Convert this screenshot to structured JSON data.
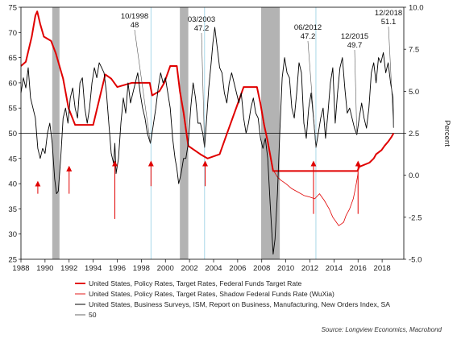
{
  "chart_data": {
    "type": "line",
    "source": "Source: Longview Economics, Macrobond",
    "x_axis": {
      "min": 1988,
      "max": 2019.8,
      "ticks": [
        1988,
        1990,
        1992,
        1994,
        1996,
        1998,
        2000,
        2002,
        2004,
        2006,
        2008,
        2010,
        2012,
        2014,
        2016,
        2018
      ]
    },
    "y_left": {
      "min": 25,
      "max": 75,
      "ticks": [
        25,
        30,
        35,
        40,
        45,
        50,
        55,
        60,
        65,
        70,
        75
      ]
    },
    "y_right": {
      "min": -5.0,
      "max": 10.0,
      "ticks": [
        -5.0,
        -2.5,
        0.0,
        2.5,
        5.0,
        7.5,
        10.0
      ],
      "tick_labels": [
        "-5.0",
        "-2.5",
        "0.0",
        "2.5",
        "5.0",
        "7.5",
        "10.0"
      ],
      "label": "Percent"
    },
    "grid": false,
    "legend_position": "bottom",
    "recessions": [
      [
        1990.6,
        1991.2
      ],
      [
        2001.2,
        2001.9
      ],
      [
        2007.95,
        2009.5
      ]
    ],
    "vertical_markers": [
      1998.8,
      2003.25,
      2012.5
    ],
    "series": [
      {
        "name": "United States, Policy Rates, Target Rates, Federal Funds Target Rate",
        "axis": "right",
        "color": "#e00000",
        "width": 2.0,
        "points": [
          [
            1988.0,
            6.5
          ],
          [
            1988.4,
            6.75
          ],
          [
            1988.9,
            8.25
          ],
          [
            1989.2,
            9.5
          ],
          [
            1989.35,
            9.75
          ],
          [
            1989.6,
            9.0
          ],
          [
            1989.9,
            8.25
          ],
          [
            1990.5,
            8.0
          ],
          [
            1990.9,
            7.25
          ],
          [
            1991.5,
            5.75
          ],
          [
            1991.95,
            4.0
          ],
          [
            1992.5,
            3.0
          ],
          [
            1993.0,
            3.0
          ],
          [
            1994.0,
            3.0
          ],
          [
            1994.5,
            4.5
          ],
          [
            1995.0,
            6.0
          ],
          [
            1995.5,
            5.75
          ],
          [
            1996.0,
            5.25
          ],
          [
            1997.2,
            5.5
          ],
          [
            1998.7,
            5.5
          ],
          [
            1998.9,
            4.75
          ],
          [
            1999.5,
            5.0
          ],
          [
            1999.9,
            5.5
          ],
          [
            2000.4,
            6.5
          ],
          [
            2000.95,
            6.5
          ],
          [
            2001.2,
            5.0
          ],
          [
            2001.5,
            3.75
          ],
          [
            2001.9,
            1.75
          ],
          [
            2002.9,
            1.25
          ],
          [
            2003.5,
            1.0
          ],
          [
            2004.5,
            1.25
          ],
          [
            2005.0,
            2.25
          ],
          [
            2006.0,
            4.25
          ],
          [
            2006.5,
            5.25
          ],
          [
            2007.6,
            5.25
          ],
          [
            2007.9,
            4.25
          ],
          [
            2008.2,
            3.0
          ],
          [
            2008.5,
            2.0
          ],
          [
            2008.95,
            0.25
          ],
          [
            2015.95,
            0.25
          ],
          [
            2016.1,
            0.5
          ],
          [
            2016.95,
            0.75
          ],
          [
            2017.3,
            1.0
          ],
          [
            2017.5,
            1.25
          ],
          [
            2017.95,
            1.5
          ],
          [
            2018.2,
            1.75
          ],
          [
            2018.5,
            2.0
          ],
          [
            2018.75,
            2.25
          ],
          [
            2018.95,
            2.5
          ]
        ]
      },
      {
        "name": "United States, Policy Rates, Target Rates, Shadow Federal Funds Rate (WuXia)",
        "axis": "right",
        "color": "#e00000",
        "width": 0.8,
        "points": [
          [
            2009.0,
            0.25
          ],
          [
            2009.3,
            -0.1
          ],
          [
            2009.6,
            -0.3
          ],
          [
            2010.0,
            -0.5
          ],
          [
            2010.5,
            -0.8
          ],
          [
            2011.0,
            -1.0
          ],
          [
            2011.5,
            -1.2
          ],
          [
            2012.0,
            -1.3
          ],
          [
            2012.4,
            -1.4
          ],
          [
            2012.8,
            -1.1
          ],
          [
            2013.2,
            -1.5
          ],
          [
            2013.6,
            -2.0
          ],
          [
            2013.9,
            -2.5
          ],
          [
            2014.2,
            -2.8
          ],
          [
            2014.4,
            -3.0
          ],
          [
            2014.8,
            -2.8
          ],
          [
            2015.0,
            -2.4
          ],
          [
            2015.3,
            -2.0
          ],
          [
            2015.6,
            -1.4
          ],
          [
            2015.8,
            -0.7
          ],
          [
            2016.0,
            0.1
          ]
        ]
      },
      {
        "name": "United States, Business Surveys, ISM, Report on Business, Manufacturing, New Orders Index, SA",
        "axis": "left",
        "color": "#000000",
        "width": 0.9,
        "points": [
          [
            1988.0,
            58
          ],
          [
            1988.2,
            61
          ],
          [
            1988.4,
            59
          ],
          [
            1988.6,
            63
          ],
          [
            1988.8,
            57
          ],
          [
            1989.0,
            55
          ],
          [
            1989.2,
            53
          ],
          [
            1989.4,
            47
          ],
          [
            1989.6,
            45
          ],
          [
            1989.8,
            47
          ],
          [
            1990.0,
            46
          ],
          [
            1990.2,
            50
          ],
          [
            1990.4,
            52
          ],
          [
            1990.6,
            48
          ],
          [
            1990.8,
            41
          ],
          [
            1990.95,
            38
          ],
          [
            1991.1,
            38.5
          ],
          [
            1991.3,
            45
          ],
          [
            1991.5,
            53
          ],
          [
            1991.7,
            55
          ],
          [
            1991.9,
            52
          ],
          [
            1992.1,
            57
          ],
          [
            1992.3,
            59
          ],
          [
            1992.5,
            55
          ],
          [
            1992.7,
            53
          ],
          [
            1992.9,
            60
          ],
          [
            1993.1,
            61
          ],
          [
            1993.3,
            55
          ],
          [
            1993.5,
            52
          ],
          [
            1993.7,
            55
          ],
          [
            1993.9,
            60
          ],
          [
            1994.1,
            63
          ],
          [
            1994.3,
            61
          ],
          [
            1994.5,
            64
          ],
          [
            1994.7,
            63
          ],
          [
            1994.9,
            62
          ],
          [
            1995.1,
            58
          ],
          [
            1995.3,
            52
          ],
          [
            1995.5,
            46
          ],
          [
            1995.7,
            44
          ],
          [
            1995.8,
            48
          ],
          [
            1995.9,
            42
          ],
          [
            1996.1,
            45
          ],
          [
            1996.3,
            52
          ],
          [
            1996.5,
            57
          ],
          [
            1996.7,
            54
          ],
          [
            1996.9,
            60
          ],
          [
            1997.1,
            56
          ],
          [
            1997.3,
            58
          ],
          [
            1997.5,
            60
          ],
          [
            1997.7,
            62
          ],
          [
            1997.9,
            58
          ],
          [
            1998.1,
            55
          ],
          [
            1998.3,
            53
          ],
          [
            1998.5,
            50
          ],
          [
            1998.75,
            48
          ],
          [
            1998.95,
            51
          ],
          [
            1999.2,
            55
          ],
          [
            1999.4,
            59
          ],
          [
            1999.6,
            62
          ],
          [
            1999.8,
            60
          ],
          [
            2000.0,
            61
          ],
          [
            2000.2,
            58
          ],
          [
            2000.4,
            55
          ],
          [
            2000.6,
            49
          ],
          [
            2000.8,
            45
          ],
          [
            2000.95,
            43
          ],
          [
            2001.1,
            40
          ],
          [
            2001.3,
            42
          ],
          [
            2001.5,
            45
          ],
          [
            2001.7,
            45
          ],
          [
            2001.9,
            48
          ],
          [
            2002.1,
            55
          ],
          [
            2002.3,
            60
          ],
          [
            2002.5,
            57
          ],
          [
            2002.7,
            52
          ],
          [
            2002.9,
            52
          ],
          [
            2003.1,
            50
          ],
          [
            2003.25,
            47.2
          ],
          [
            2003.4,
            52
          ],
          [
            2003.6,
            59
          ],
          [
            2003.8,
            64
          ],
          [
            2003.95,
            68
          ],
          [
            2004.1,
            71
          ],
          [
            2004.3,
            67
          ],
          [
            2004.5,
            63
          ],
          [
            2004.7,
            62
          ],
          [
            2004.9,
            58
          ],
          [
            2005.1,
            56
          ],
          [
            2005.3,
            60
          ],
          [
            2005.5,
            62
          ],
          [
            2005.7,
            60
          ],
          [
            2005.9,
            58
          ],
          [
            2006.1,
            56
          ],
          [
            2006.3,
            58
          ],
          [
            2006.5,
            53
          ],
          [
            2006.7,
            50
          ],
          [
            2006.9,
            52
          ],
          [
            2007.1,
            55
          ],
          [
            2007.3,
            57
          ],
          [
            2007.5,
            54
          ],
          [
            2007.7,
            53
          ],
          [
            2007.9,
            49
          ],
          [
            2008.1,
            47
          ],
          [
            2008.3,
            49
          ],
          [
            2008.5,
            45
          ],
          [
            2008.7,
            36
          ],
          [
            2008.85,
            30
          ],
          [
            2008.95,
            26
          ],
          [
            2009.1,
            29
          ],
          [
            2009.3,
            38
          ],
          [
            2009.5,
            50
          ],
          [
            2009.7,
            61
          ],
          [
            2009.9,
            65
          ],
          [
            2010.1,
            62
          ],
          [
            2010.3,
            61
          ],
          [
            2010.5,
            55
          ],
          [
            2010.7,
            53
          ],
          [
            2010.9,
            58
          ],
          [
            2011.1,
            64
          ],
          [
            2011.3,
            62
          ],
          [
            2011.5,
            52
          ],
          [
            2011.7,
            49
          ],
          [
            2011.9,
            55
          ],
          [
            2012.1,
            58
          ],
          [
            2012.3,
            53
          ],
          [
            2012.5,
            47.2
          ],
          [
            2012.7,
            50
          ],
          [
            2012.9,
            53
          ],
          [
            2013.1,
            55
          ],
          [
            2013.3,
            49
          ],
          [
            2013.5,
            54
          ],
          [
            2013.7,
            60
          ],
          [
            2013.9,
            63
          ],
          [
            2014.1,
            52
          ],
          [
            2014.3,
            58
          ],
          [
            2014.5,
            63
          ],
          [
            2014.7,
            65
          ],
          [
            2014.9,
            59
          ],
          [
            2015.1,
            54
          ],
          [
            2015.3,
            55
          ],
          [
            2015.5,
            53
          ],
          [
            2015.7,
            51
          ],
          [
            2015.9,
            49.7
          ],
          [
            2016.1,
            53
          ],
          [
            2016.3,
            56
          ],
          [
            2016.5,
            53
          ],
          [
            2016.7,
            51
          ],
          [
            2016.9,
            55
          ],
          [
            2017.1,
            62
          ],
          [
            2017.3,
            64
          ],
          [
            2017.5,
            60
          ],
          [
            2017.7,
            65
          ],
          [
            2017.9,
            64
          ],
          [
            2018.1,
            66
          ],
          [
            2018.3,
            62
          ],
          [
            2018.5,
            64
          ],
          [
            2018.7,
            60
          ],
          [
            2018.9,
            57
          ],
          [
            2018.95,
            51.1
          ]
        ]
      },
      {
        "name": "50",
        "axis": "left",
        "color": "#000000",
        "width": 0.8,
        "hline": 50
      }
    ],
    "annotations": [
      {
        "text": "10/1998",
        "sub": "48",
        "date": 1998.75
      },
      {
        "text": "03/2003",
        "sub": "47.2",
        "date": 2003.25
      },
      {
        "text": "06/2012",
        "sub": "47.2",
        "date": 2012.5
      },
      {
        "text": "12/2015",
        "sub": "49.7",
        "date": 2015.9
      },
      {
        "text": "12/2018",
        "sub": "51.1",
        "date": 2018.95
      }
    ],
    "arrows": [
      1989.4,
      1992.0,
      1995.8,
      1998.8,
      2003.3,
      2012.3,
      2016.0
    ]
  },
  "colors": {
    "red": "#e00000",
    "black": "#000000",
    "recession": "#b3b3b3",
    "marker": "#9fd3e6"
  }
}
